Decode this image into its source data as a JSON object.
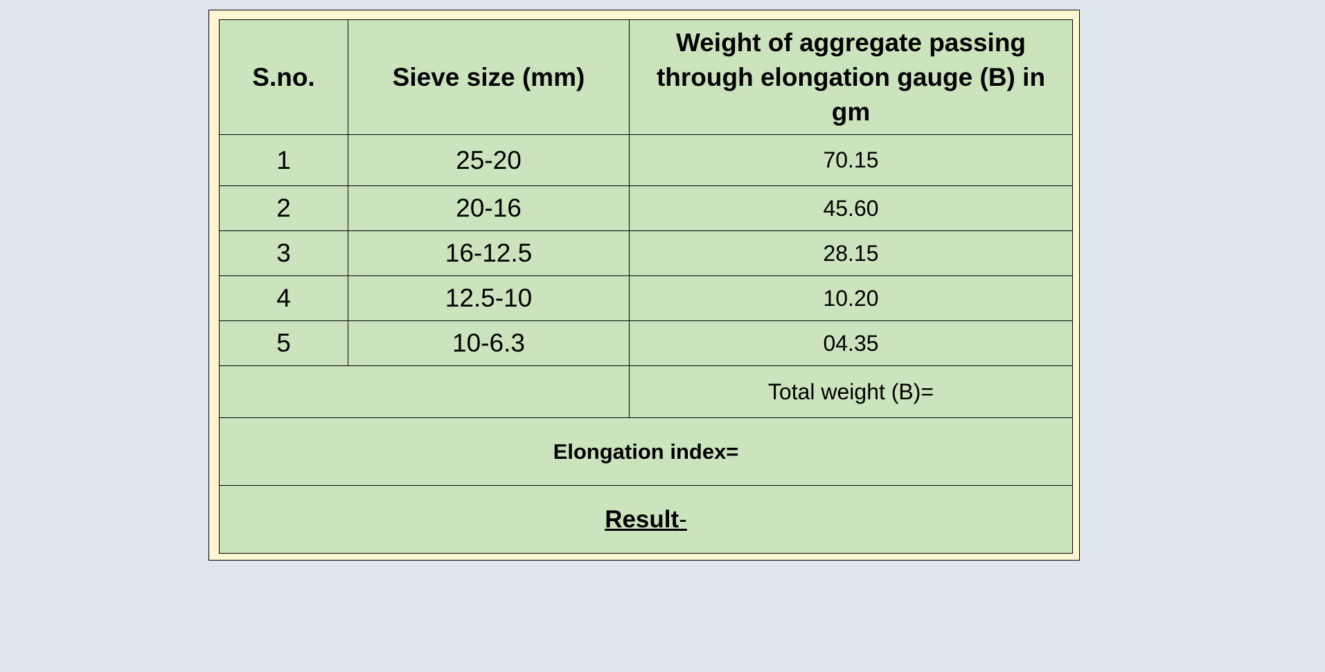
{
  "table": {
    "headers": {
      "sno": "S.no.",
      "sieve": "Sieve size (mm)",
      "weight": "Weight of aggregate passing through elongation gauge (B) in gm"
    },
    "rows": [
      {
        "sno": "1",
        "sieve": "25-20",
        "weight": "70.15"
      },
      {
        "sno": "2",
        "sieve": "20-16",
        "weight": "45.60"
      },
      {
        "sno": "3",
        "sieve": "16-12.5",
        "weight": "28.15"
      },
      {
        "sno": "4",
        "sieve": "12.5-10",
        "weight": "10.20"
      },
      {
        "sno": "5",
        "sieve": "10-6.3",
        "weight": "04.35"
      }
    ],
    "total_label": "Total weight (B)=",
    "elongation_label": "Elongation index=",
    "result_label": "Result",
    "result_suffix": "-"
  },
  "colors": {
    "background": "#dfe5ed",
    "frame": "#fff6d2",
    "cell": "#cce4bd",
    "border": "#000000"
  }
}
